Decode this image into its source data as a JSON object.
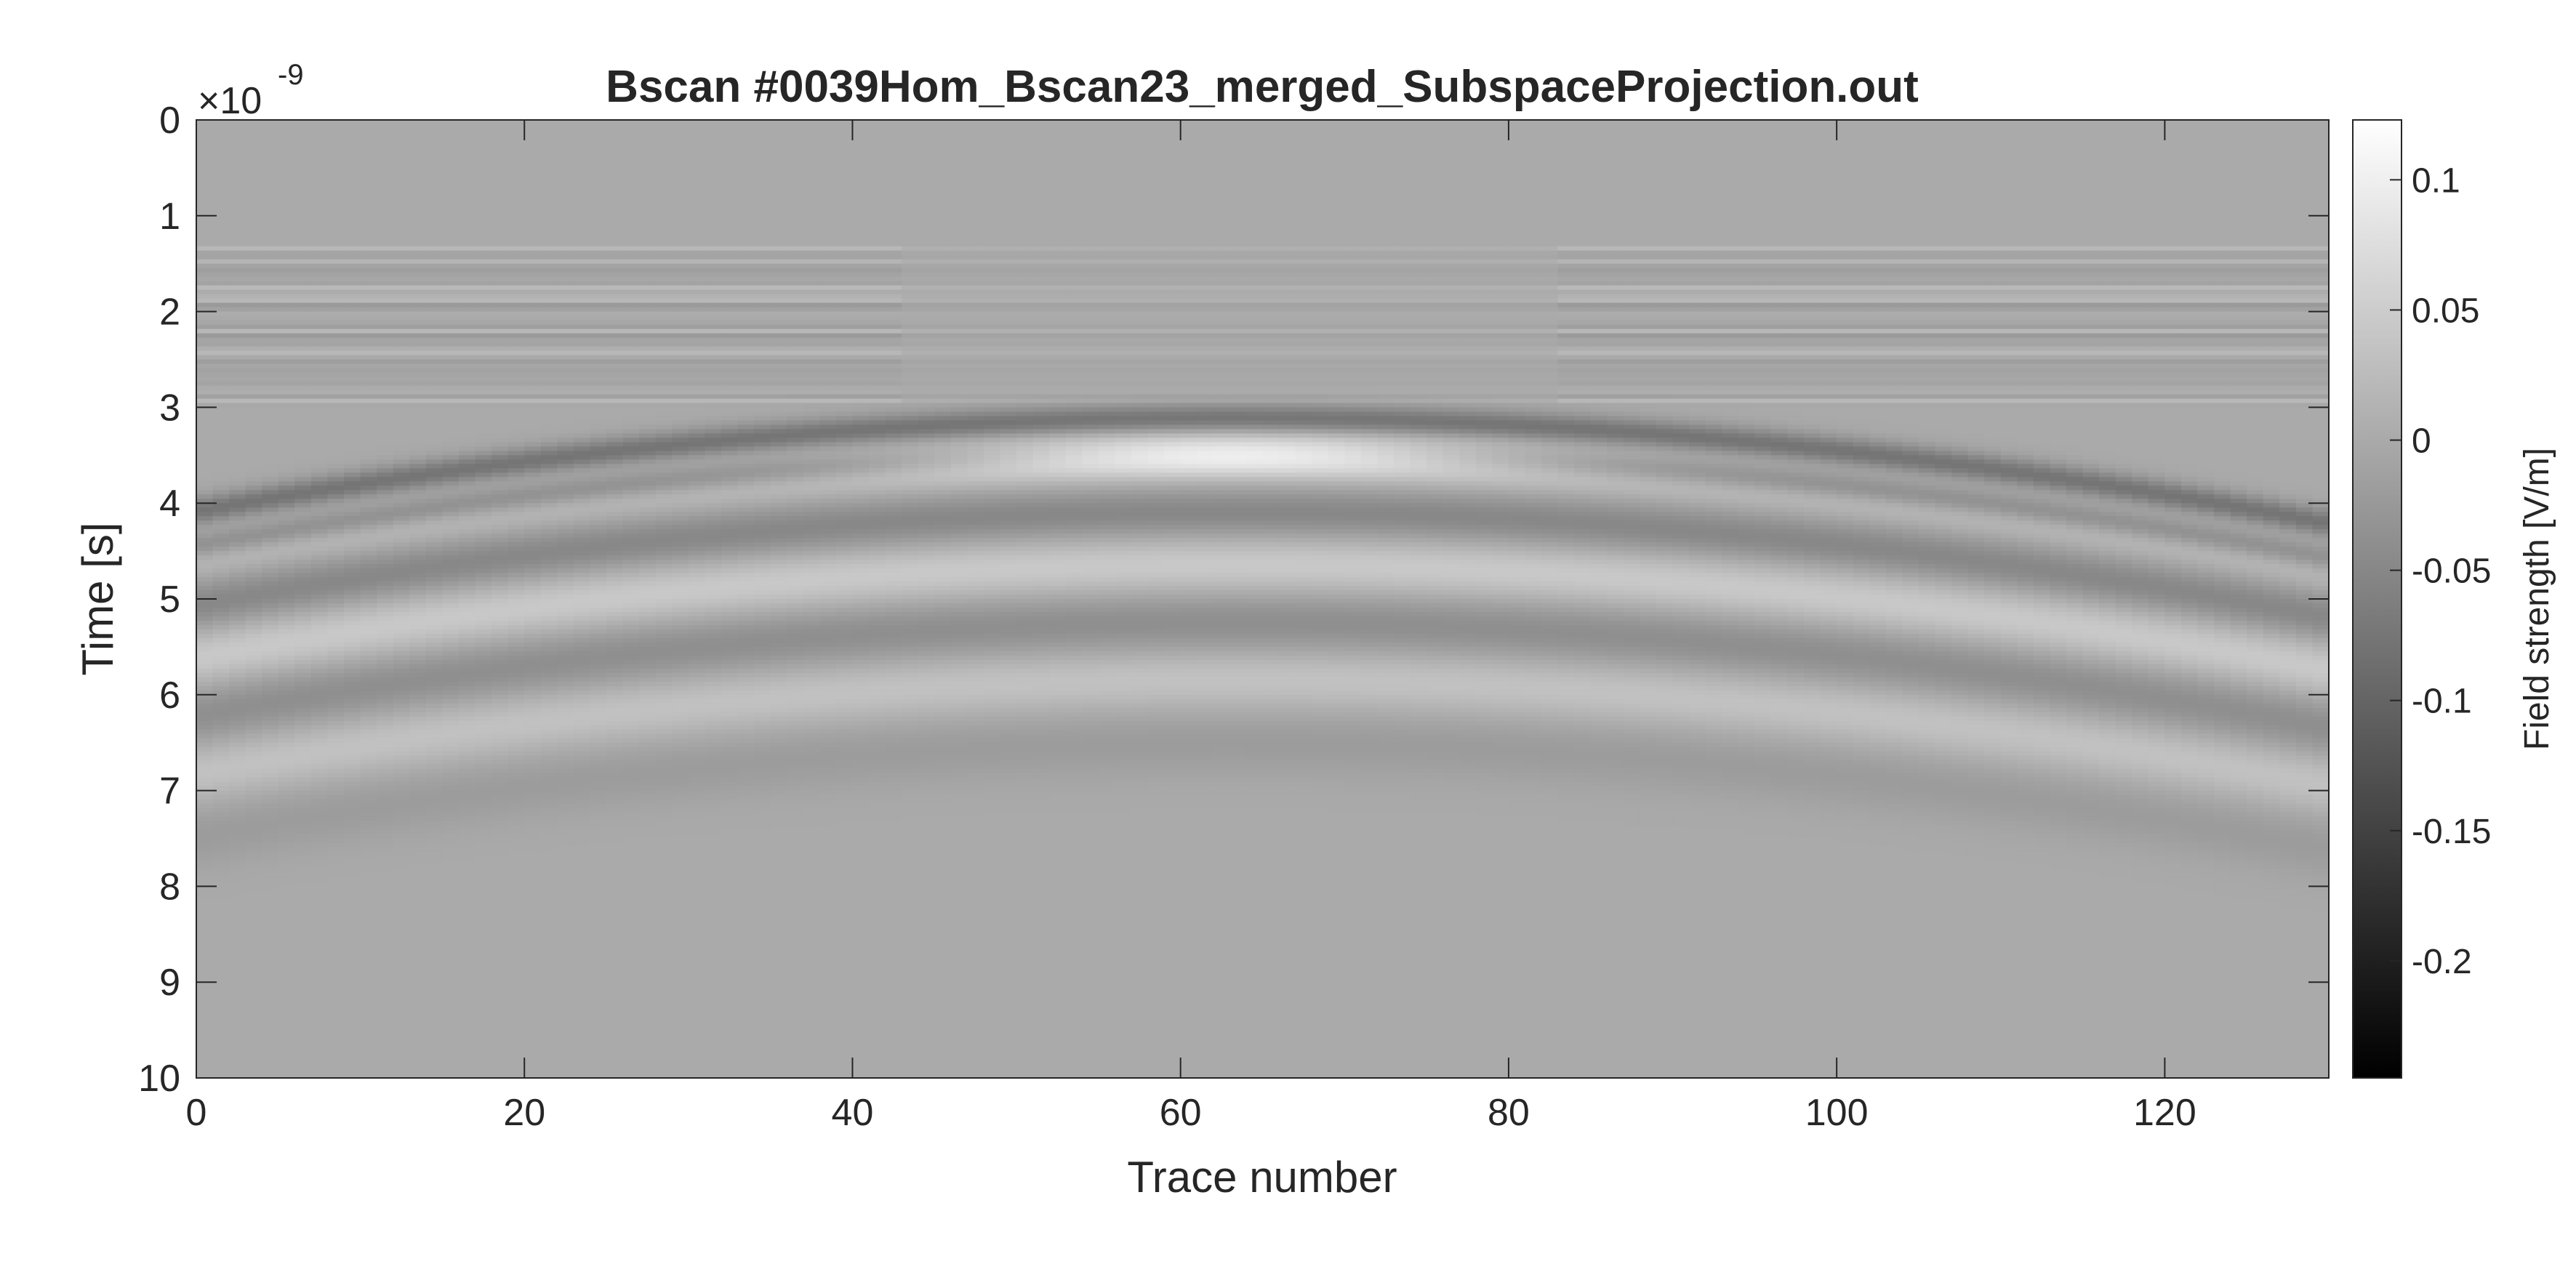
{
  "chart_data": {
    "type": "heatmap",
    "title": "Bscan #0039Hom_Bscan23_merged_SubspaceProjection.out",
    "xlabel": "Trace number",
    "ylabel": "Time [s]",
    "y_exponent_base": "×10",
    "y_exponent_power": "-9",
    "xlim": [
      0,
      130
    ],
    "ylim": [
      0,
      10
    ],
    "x_ticks": [
      0,
      20,
      40,
      60,
      80,
      100,
      120
    ],
    "y_ticks": [
      0,
      1,
      2,
      3,
      4,
      5,
      6,
      7,
      8,
      9,
      10
    ],
    "colormap": "gray",
    "colorbar": {
      "label": "Field strength [V/m]",
      "range": [
        -0.245,
        0.123
      ],
      "ticks": [
        0.1,
        0.05,
        0,
        -0.05,
        -0.1,
        -0.15,
        -0.2
      ],
      "tick_labels": [
        "0.1",
        "0.05",
        "0",
        "-0.05",
        "-0.1",
        "-0.15",
        "-0.2"
      ]
    },
    "hyperbola": {
      "apex_trace": 63,
      "apex_time_ns": 3.5,
      "limb_time_ns_at_trace_0": 4.6,
      "description": "diffraction hyperbola with repeating white/black/white wavelet bands"
    },
    "noise_band_time_ns": [
      1.3,
      3.0
    ]
  }
}
